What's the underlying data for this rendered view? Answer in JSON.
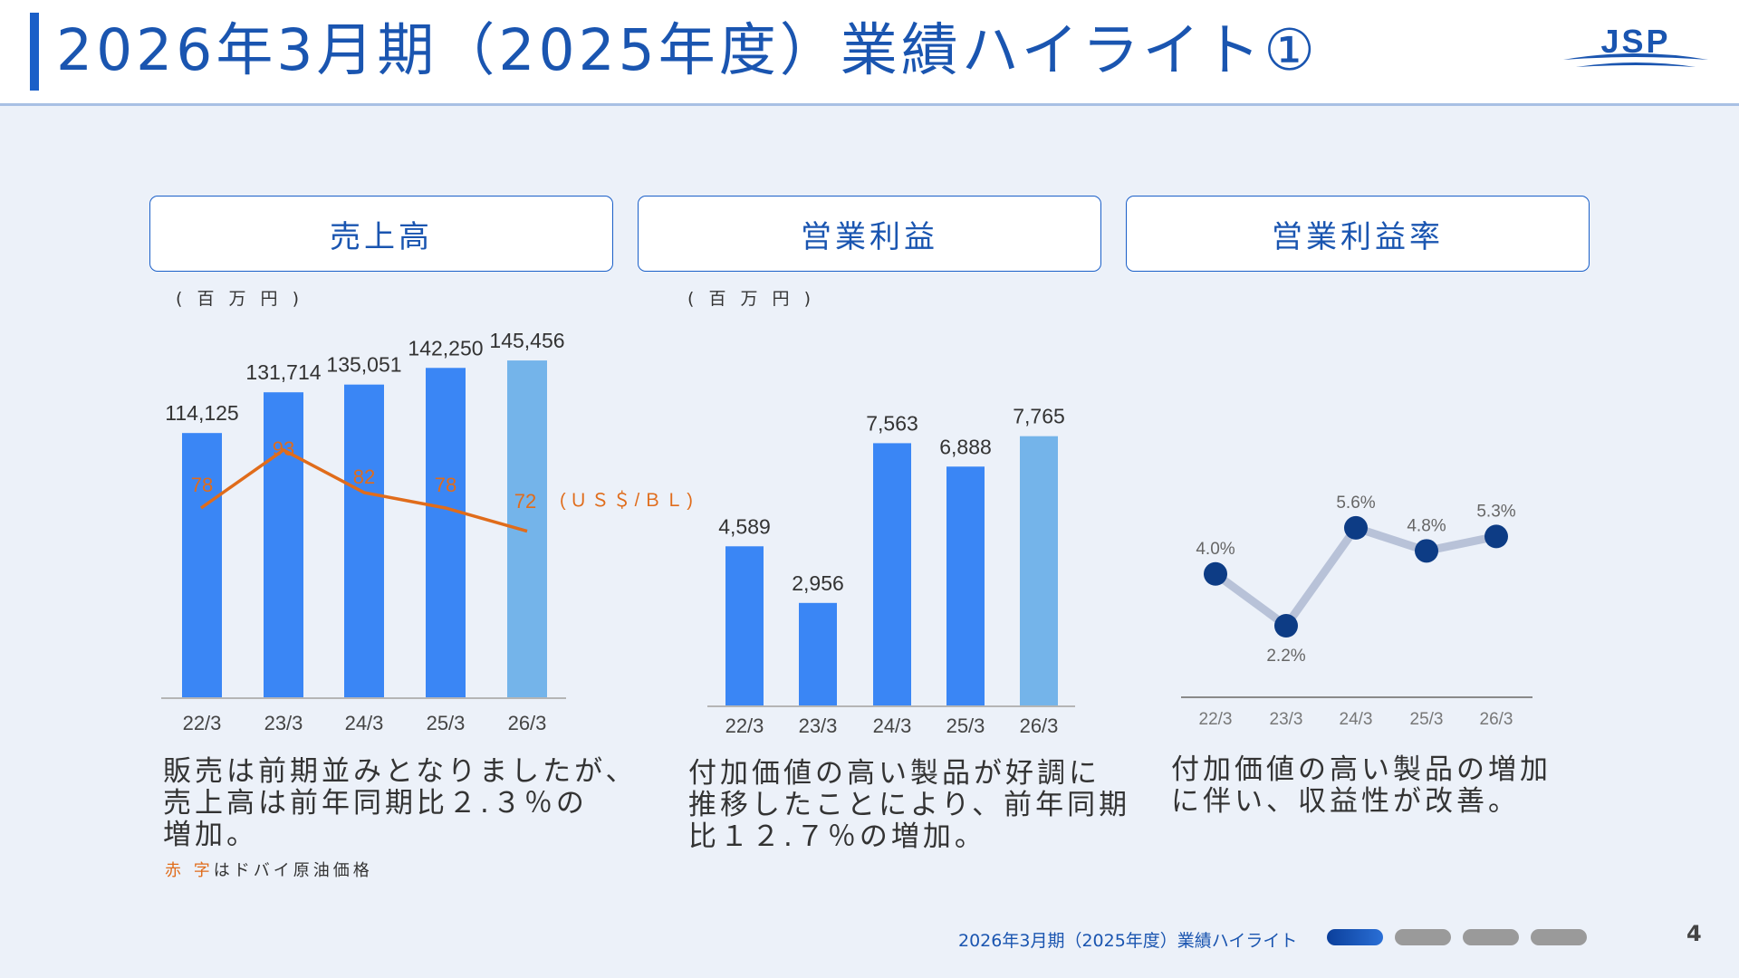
{
  "title": "2026年3月期（2025年度）業績ハイライト①",
  "logo_text": "JSP",
  "colors": {
    "accent": "#1a5fc8",
    "bar": "#3a86f5",
    "bar_forecast": "#74b4ea",
    "oil_line": "#e06c1b",
    "margin_line": "#b8c2d8",
    "margin_marker": "#0d3c85"
  },
  "panels": [
    {
      "heading": "売上高",
      "unit": "( 百 万 円 )",
      "description": [
        "販売は前期並みとなりましたが、",
        "売上高は前年同期比２.３％の",
        "増加。"
      ],
      "note_red": "赤 字",
      "note_rest": "はドバイ原油価格"
    },
    {
      "heading": "営業利益",
      "unit": "( 百 万 円 )",
      "description": [
        "付加価値の高い製品が好調に",
        "推移したことにより、前年同期",
        "比１２.７％の増加。"
      ]
    },
    {
      "heading": "営業利益率",
      "description": [
        "付加価値の高い製品の増加",
        "に伴い、収益性が改善。"
      ]
    }
  ],
  "chart_data": [
    {
      "type": "bar",
      "categories": [
        "22/3",
        "23/3",
        "24/3",
        "25/3",
        "26/3"
      ],
      "series": [
        {
          "values": [
            114125,
            131714,
            135051,
            142250,
            145456
          ],
          "labels": [
            "114,125",
            "131,714",
            "135,051",
            "142,250",
            "145,456"
          ]
        },
        {
          "name": "(ＵＳ＄/ＢＬ)",
          "values": [
            78,
            93,
            82,
            78,
            72
          ],
          "labels": [
            "78",
            "93",
            "82",
            "78",
            "72"
          ]
        }
      ],
      "forecast_index": 4
    },
    {
      "type": "bar",
      "categories": [
        "22/3",
        "23/3",
        "24/3",
        "25/3",
        "26/3"
      ],
      "values": [
        4589,
        2956,
        7563,
        6888,
        7765
      ],
      "labels": [
        "4,589",
        "2,956",
        "7,563",
        "6,888",
        "7,765"
      ],
      "forecast_index": 4
    },
    {
      "type": "line",
      "categories": [
        "22/3",
        "23/3",
        "24/3",
        "25/3",
        "26/3"
      ],
      "values": [
        4.0,
        2.2,
        5.6,
        4.8,
        5.3
      ],
      "labels": [
        "4.0%",
        "2.2%",
        "5.6%",
        "4.8%",
        "5.3%"
      ]
    }
  ],
  "footer": {
    "title": "2026年3月期（2025年度）業績ハイライト",
    "page": "4"
  }
}
